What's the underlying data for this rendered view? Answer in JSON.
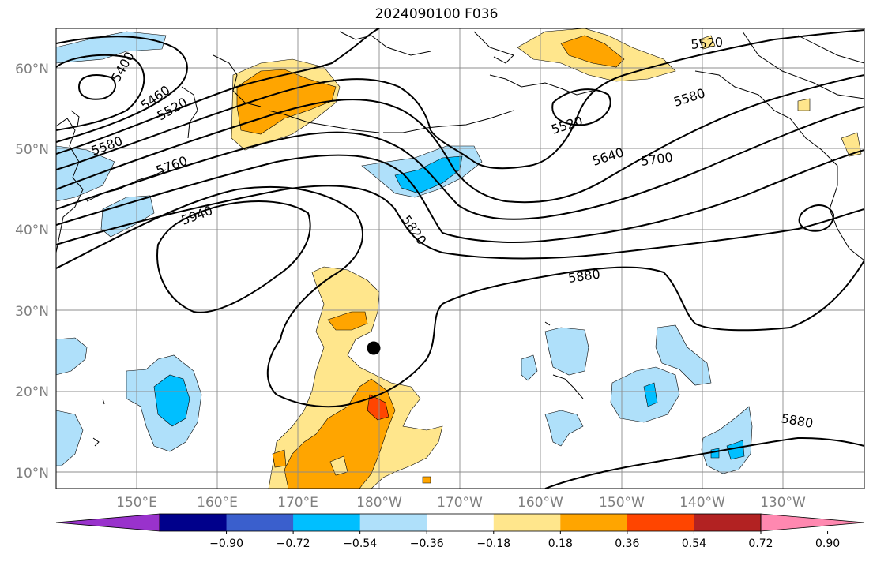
{
  "title": "2024090100 F036",
  "map": {
    "lat_ticks": [
      "10°N",
      "20°N",
      "30°N",
      "40°N",
      "50°N",
      "60°N"
    ],
    "lon_ticks": [
      "150°E",
      "160°E",
      "170°E",
      "180°W",
      "170°W",
      "160°W",
      "150°W",
      "140°W",
      "130°W"
    ],
    "contour_levels": [
      "5400",
      "5460",
      "5520",
      "5520",
      "5520",
      "5580",
      "5580",
      "5640",
      "5700",
      "5760",
      "5820",
      "5880",
      "5880",
      "5940"
    ],
    "marker": "storm-center-dot"
  },
  "colorbar": {
    "ticks": [
      "−0.90",
      "−0.72",
      "−0.54",
      "−0.36",
      "−0.18",
      "0.18",
      "0.36",
      "0.54",
      "0.72",
      "0.90"
    ],
    "colors": [
      "#9932cc",
      "#00008b",
      "#3a5fcd",
      "#00bfff",
      "#afe0fa",
      "#ffffff",
      "#ffe68c",
      "#ffa500",
      "#ff4500",
      "#b22222",
      "#ff88b0"
    ]
  }
}
